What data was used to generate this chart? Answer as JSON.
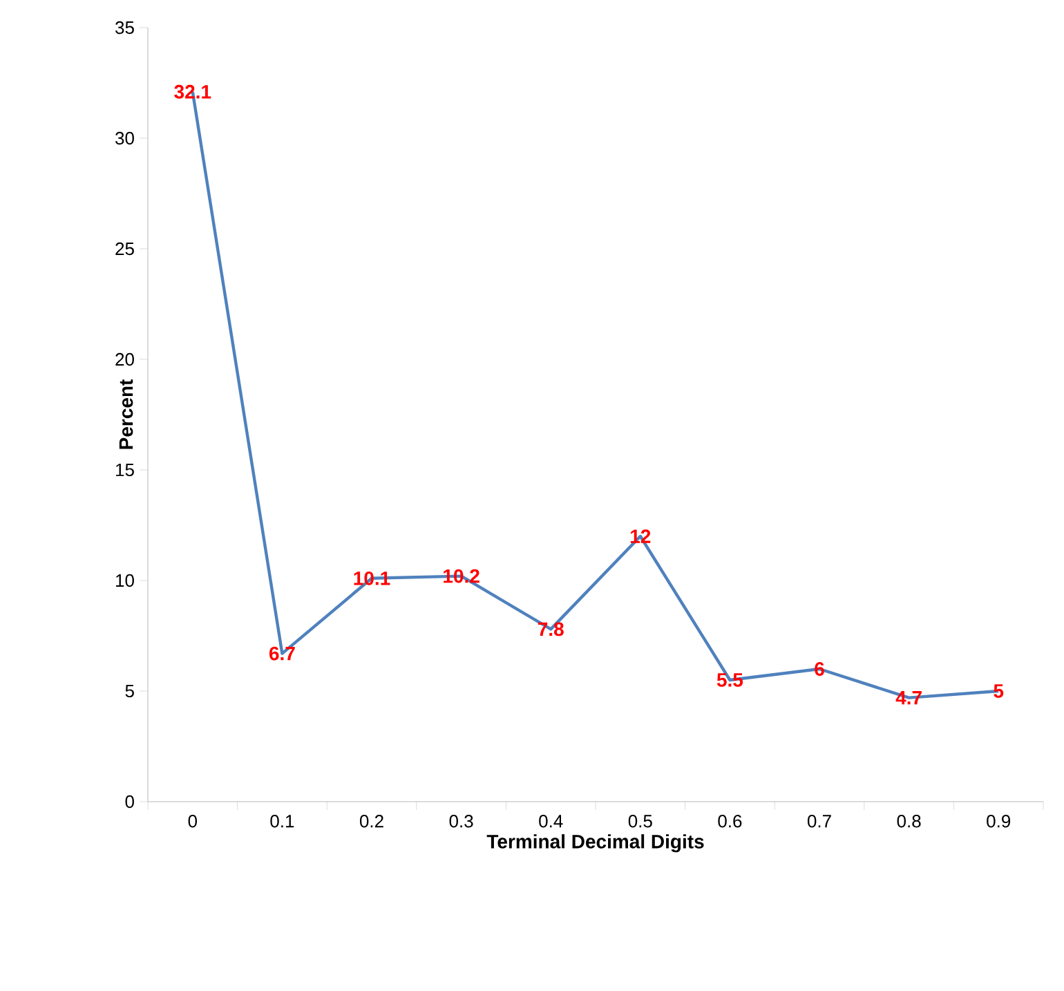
{
  "chart_data": {
    "type": "line",
    "xlabel": "Terminal Decimal Digits",
    "ylabel": "Percent",
    "categories": [
      "0",
      "0.1",
      "0.2",
      "0.3",
      "0.4",
      "0.5",
      "0.6",
      "0.7",
      "0.8",
      "0.9"
    ],
    "values": [
      32.1,
      6.7,
      10.1,
      10.2,
      7.8,
      12,
      5.5,
      6,
      4.7,
      5
    ],
    "color": "#4f81bd",
    "ylim": [
      0,
      35
    ],
    "yticks": [
      0,
      5,
      10,
      15,
      20,
      25,
      30,
      35
    ],
    "data_labels": true,
    "grid": false,
    "marker": "none",
    "line_style": "solid"
  }
}
